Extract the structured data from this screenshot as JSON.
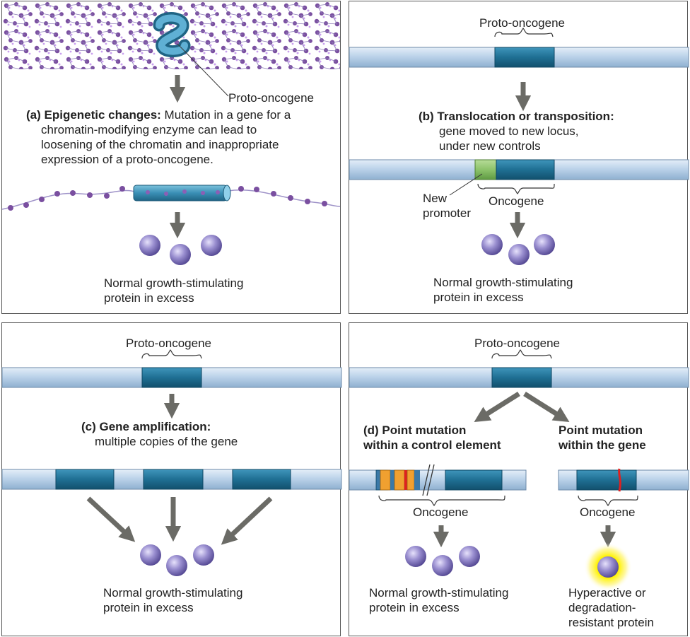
{
  "panel_a": {
    "gene_label": "Proto-oncogene",
    "title_bold": "(a) Epigenetic changes:",
    "title_rest": " Mutation in a gene for a",
    "desc_line2": "chromatin-modifying enzyme can lead to",
    "desc_line3": "loosening of the chromatin and inappropriate",
    "desc_line4": "expression of a proto-oncogene.",
    "result_line1": "Normal growth-stimulating",
    "result_line2": "protein in excess"
  },
  "panel_b": {
    "gene_label": "Proto-oncogene",
    "title": "(b) Translocation or transposition:",
    "desc_line1": "gene moved to new locus,",
    "desc_line2": "under new controls",
    "promoter_line1": "New",
    "promoter_line2": "promoter",
    "oncogene_label": "Oncogene",
    "result_line1": "Normal growth-stimulating",
    "result_line2": "protein in excess"
  },
  "panel_c": {
    "gene_label": "Proto-oncogene",
    "title": "(c) Gene amplification:",
    "desc_line1": "multiple copies of the gene",
    "result_line1": "Normal growth-stimulating",
    "result_line2": "protein in excess"
  },
  "panel_d": {
    "gene_label": "Proto-oncogene",
    "left_title_line1": "(d) Point mutation",
    "left_title_line2": "within a control element",
    "right_title_line1": "Point mutation",
    "right_title_line2": "within the gene",
    "left_oncogene_label": "Oncogene",
    "right_oncogene_label": "Oncogene",
    "left_result_line1": "Normal growth-stimulating",
    "left_result_line2": "protein in excess",
    "right_result_line1": "Hyperactive or",
    "right_result_line2": "degradation-",
    "right_result_line3": "resistant protein"
  },
  "colors": {
    "dna_light": "#bcd3ea",
    "gene_dark": "#1f6f93",
    "promoter_green": "#8cc26a",
    "protein_purple": "#9a8fd0",
    "arrow_gray": "#6b6b66",
    "mutation_red": "#e02020",
    "control_orange": "#f0a030",
    "glow_yellow": "#fff200",
    "chromatin_purple": "#7a4fa0"
  }
}
